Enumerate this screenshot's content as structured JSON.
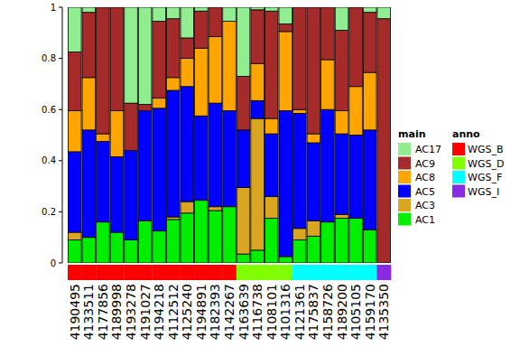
{
  "chart_data": {
    "type": "bar",
    "stacked": true,
    "categories": [
      "4190495",
      "4133511",
      "4177856",
      "4189998",
      "4193278",
      "4191027",
      "4194218",
      "4112512",
      "4125240",
      "4194891",
      "4182393",
      "4142267",
      "4163639",
      "4116738",
      "4108101",
      "4101316",
      "4121361",
      "4175837",
      "4158726",
      "4189200",
      "4105105",
      "4159170",
      "4135350"
    ],
    "ylim": [
      0,
      1
    ],
    "yticks": [
      0,
      0.2,
      0.4,
      0.6,
      0.8,
      1
    ],
    "legend_title": "main",
    "series": [
      {
        "name": "AC1",
        "color": "#00ee00",
        "values": [
          0.09,
          0.1,
          0.16,
          0.12,
          0.09,
          0.165,
          0.125,
          0.17,
          0.195,
          0.245,
          0.205,
          0.22,
          0.035,
          0.05,
          0.175,
          0.025,
          0.09,
          0.105,
          0.16,
          0.175,
          0.175,
          0.13,
          0
        ]
      },
      {
        "name": "AC3",
        "color": "#daa520",
        "values": [
          0.03,
          0,
          0,
          0,
          0,
          0,
          0,
          0.01,
          0.045,
          0,
          0.015,
          0,
          0.26,
          0.515,
          0.085,
          0,
          0.045,
          0.06,
          0,
          0.015,
          0,
          0,
          0
        ]
      },
      {
        "name": "AC5",
        "color": "#0000ff",
        "values": [
          0.315,
          0.42,
          0.315,
          0.295,
          0.35,
          0.43,
          0.48,
          0.495,
          0.45,
          0.33,
          0.405,
          0.375,
          0.225,
          0.07,
          0.245,
          0.57,
          0.45,
          0.305,
          0.44,
          0.315,
          0.325,
          0.39,
          0
        ]
      },
      {
        "name": "AC8",
        "color": "#ffa500",
        "values": [
          0.16,
          0.205,
          0.03,
          0.18,
          0,
          0,
          0.04,
          0.05,
          0.11,
          0.265,
          0.26,
          0.35,
          0,
          0.145,
          0.06,
          0.31,
          0.015,
          0.035,
          0.195,
          0.09,
          0.19,
          0.225,
          0
        ]
      },
      {
        "name": "AC9",
        "color": "#a52a2a",
        "values": [
          0.23,
          0.255,
          0.495,
          0.405,
          0.185,
          0.025,
          0.3,
          0.23,
          0.08,
          0.145,
          0.115,
          0,
          0.21,
          0.21,
          0.42,
          0.03,
          0.4,
          0.495,
          0.205,
          0.315,
          0.31,
          0.235,
          0.955
        ]
      },
      {
        "name": "AC17",
        "color": "#90ee90",
        "values": [
          0.175,
          0.02,
          0,
          0,
          0.375,
          0.38,
          0.055,
          0.045,
          0.12,
          0.015,
          0,
          0.055,
          0.27,
          0.01,
          0.015,
          0.065,
          0,
          0,
          0,
          0.09,
          0,
          0.02,
          0.045
        ]
      }
    ],
    "annotation": {
      "title": "anno",
      "levels": [
        {
          "name": "WGS_B",
          "color": "#ff0000"
        },
        {
          "name": "WGS_D",
          "color": "#7fff00"
        },
        {
          "name": "WGS_F",
          "color": "#00ffff"
        },
        {
          "name": "WGS_I",
          "color": "#8a2be2"
        }
      ],
      "values": [
        "WGS_B",
        "WGS_B",
        "WGS_B",
        "WGS_B",
        "WGS_B",
        "WGS_B",
        "WGS_B",
        "WGS_B",
        "WGS_B",
        "WGS_B",
        "WGS_B",
        "WGS_B",
        "WGS_D",
        "WGS_D",
        "WGS_D",
        "WGS_D",
        "WGS_F",
        "WGS_F",
        "WGS_F",
        "WGS_F",
        "WGS_F",
        "WGS_F",
        "WGS_I"
      ]
    }
  }
}
